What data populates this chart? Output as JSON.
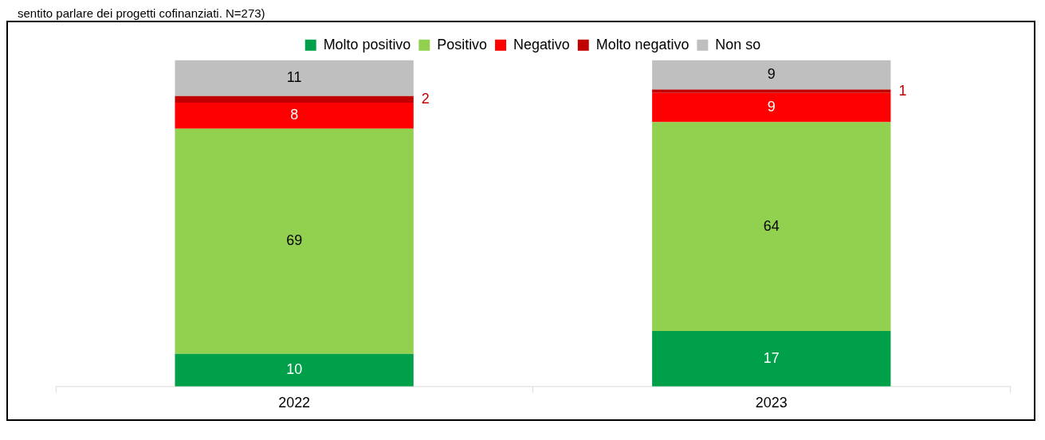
{
  "chart_data": {
    "type": "bar",
    "stacked": true,
    "data_labels": true,
    "legend": "top",
    "categories": [
      "2022",
      "2023"
    ],
    "series": [
      {
        "name": "Molto positivo",
        "color": "#00a04a",
        "values": [
          10,
          17
        ]
      },
      {
        "name": "Positivo",
        "color": "#92d050",
        "values": [
          69,
          64
        ]
      },
      {
        "name": "Negativo",
        "color": "#ff0000",
        "values": [
          8,
          9
        ]
      },
      {
        "name": "Molto negativo",
        "color": "#c00000",
        "values": [
          2,
          1
        ]
      },
      {
        "name": "Non so",
        "color": "#bfbfbf",
        "values": [
          11,
          9
        ]
      }
    ],
    "annotations": [
      "sentito parlare dei progetti cofinanziati. N=273)"
    ]
  }
}
